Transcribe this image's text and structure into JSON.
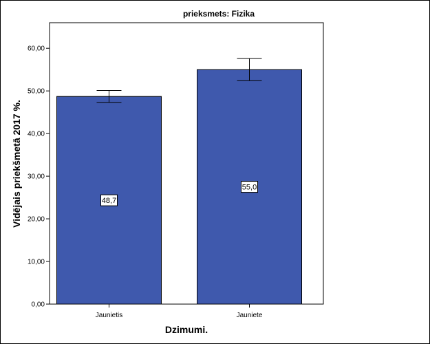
{
  "chart_data": {
    "type": "bar",
    "title": "prieksmets: Fizika",
    "xlabel": "Dzimumi.",
    "ylabel": "Vidējais priekšmetā 2017 %.",
    "categories": [
      "Jaunietis",
      "Jauniete"
    ],
    "values": [
      48.7,
      55.0
    ],
    "value_labels": [
      "48,7",
      "55,0"
    ],
    "error_low": [
      47.3,
      52.4
    ],
    "error_high": [
      50.1,
      57.6
    ],
    "ylim": [
      0,
      66
    ],
    "yticks": [
      0,
      10,
      20,
      30,
      40,
      50,
      60
    ],
    "ytick_labels": [
      "0,00",
      "10,00",
      "20,00",
      "30,00",
      "40,00",
      "50,00",
      "60,00"
    ],
    "grid": false,
    "bar_color": "#3f59ad"
  }
}
